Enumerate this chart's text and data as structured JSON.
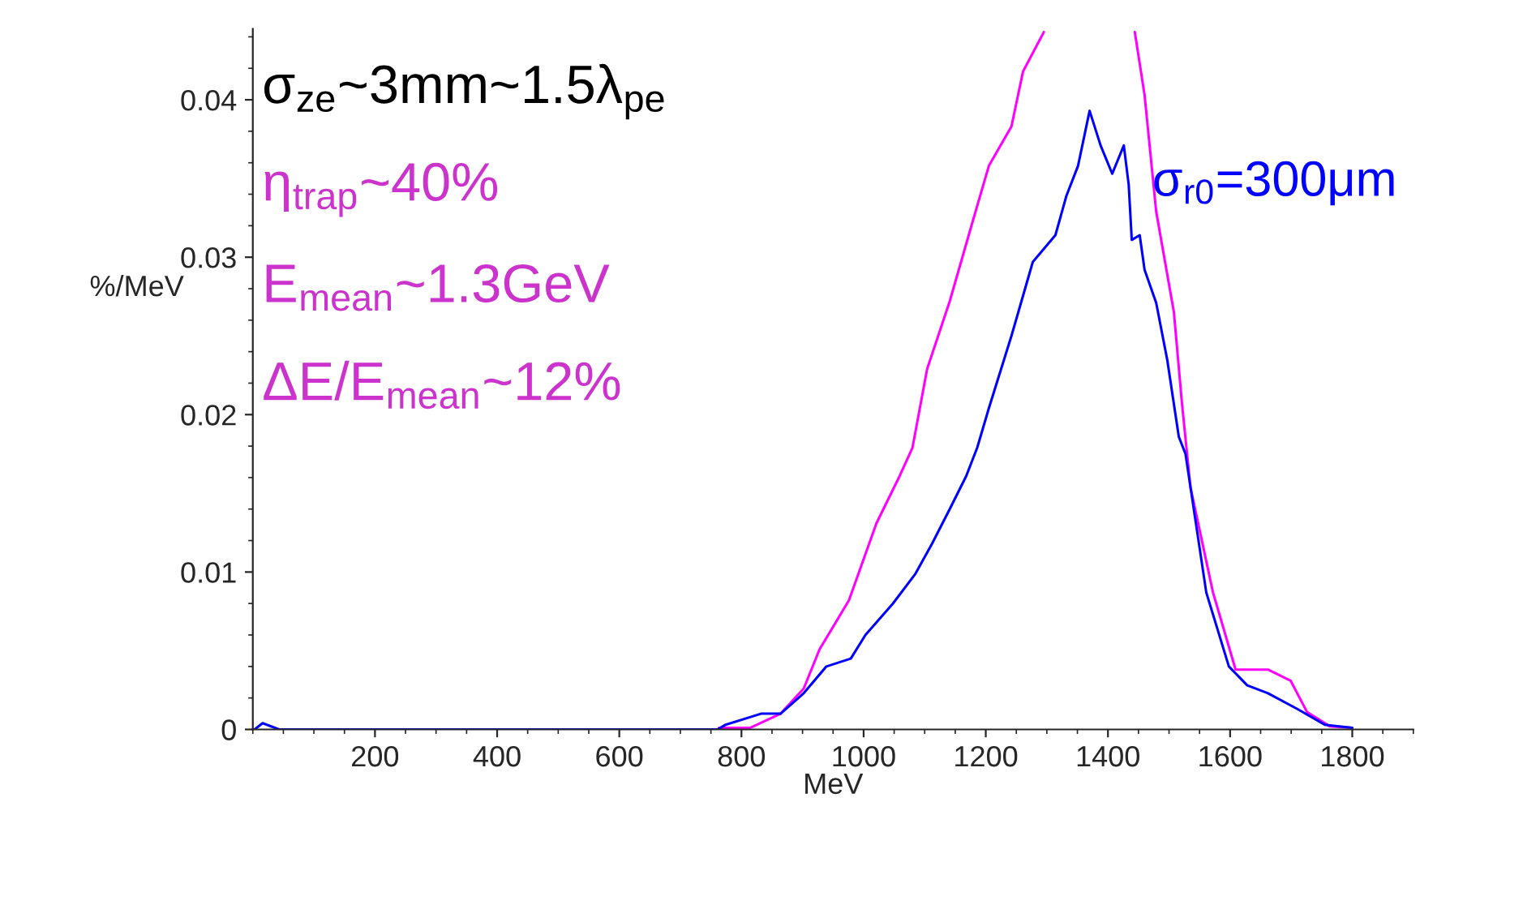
{
  "chart_data": {
    "type": "line",
    "xlabel": "MeV",
    "ylabel": "%/MeV",
    "xlim": [
      0,
      1900
    ],
    "ylim": [
      0,
      0.0445
    ],
    "xticks": [
      200,
      400,
      600,
      800,
      1000,
      1200,
      1400,
      1600,
      1800
    ],
    "yticks": [
      0,
      0.01,
      0.02,
      0.03,
      0.04
    ],
    "grid": false,
    "legend": false,
    "marker": "none",
    "line_style": "solid",
    "annotations": [
      "σ$_{ze}$~3mm~1.5λ$_{pe}$",
      "η$_{trap}$~40%",
      "E$_{mean}$~1.3GeV",
      "ΔE/E$_{mean}$~12%"
    ],
    "series": [
      {
        "color": "#ff00ff",
        "x": [
          763,
          814,
          864,
          902,
          928,
          976,
          1021,
          1059,
          1080,
          1104,
          1141,
          1178,
          1205,
          1242,
          1261,
          1295,
          1370,
          1444,
          1460,
          1479,
          1508,
          1521,
          1535,
          1572,
          1609,
          1662,
          1699,
          1726,
          1763,
          1800
        ],
        "values": [
          0.0001,
          0.0001,
          0.001,
          0.0026,
          0.0051,
          0.0082,
          0.0131,
          0.0161,
          0.0179,
          0.0229,
          0.0272,
          0.0322,
          0.0358,
          0.0383,
          0.0418,
          0.0443,
          null,
          0.0443,
          0.0403,
          0.0329,
          0.0265,
          0.0208,
          0.0154,
          0.0087,
          0.0038,
          0.0038,
          0.0031,
          0.0011,
          0.0002,
          0.0001
        ]
      },
      {
        "name": "σ$_{r0}$=300μm",
        "color": "#0000ff",
        "x": [
          3,
          16,
          43,
          761,
          774,
          832,
          864,
          902,
          939,
          979,
          1003,
          1048,
          1085,
          1112,
          1141,
          1168,
          1186,
          1205,
          1242,
          1277,
          1314,
          1332,
          1351,
          1370,
          1388,
          1407,
          1426,
          1434,
          1439,
          1452,
          1460,
          1479,
          1497,
          1516,
          1527,
          1561,
          1598,
          1628,
          1662,
          1710,
          1755,
          1800
        ],
        "values": [
          0,
          0.0004,
          0,
          0,
          0.0003,
          0.001,
          0.001,
          0.0023,
          0.004,
          0.0045,
          0.006,
          0.008,
          0.0099,
          0.0118,
          0.014,
          0.0161,
          0.0179,
          0.0204,
          0.025,
          0.0297,
          0.0314,
          0.0339,
          0.0358,
          0.0393,
          0.0371,
          0.0353,
          0.0371,
          0.0346,
          0.0311,
          0.0314,
          0.0292,
          0.0271,
          0.0235,
          0.0186,
          0.0175,
          0.0087,
          0.004,
          0.0028,
          0.0023,
          0.0013,
          0.0003,
          0.0001
        ]
      }
    ]
  }
}
